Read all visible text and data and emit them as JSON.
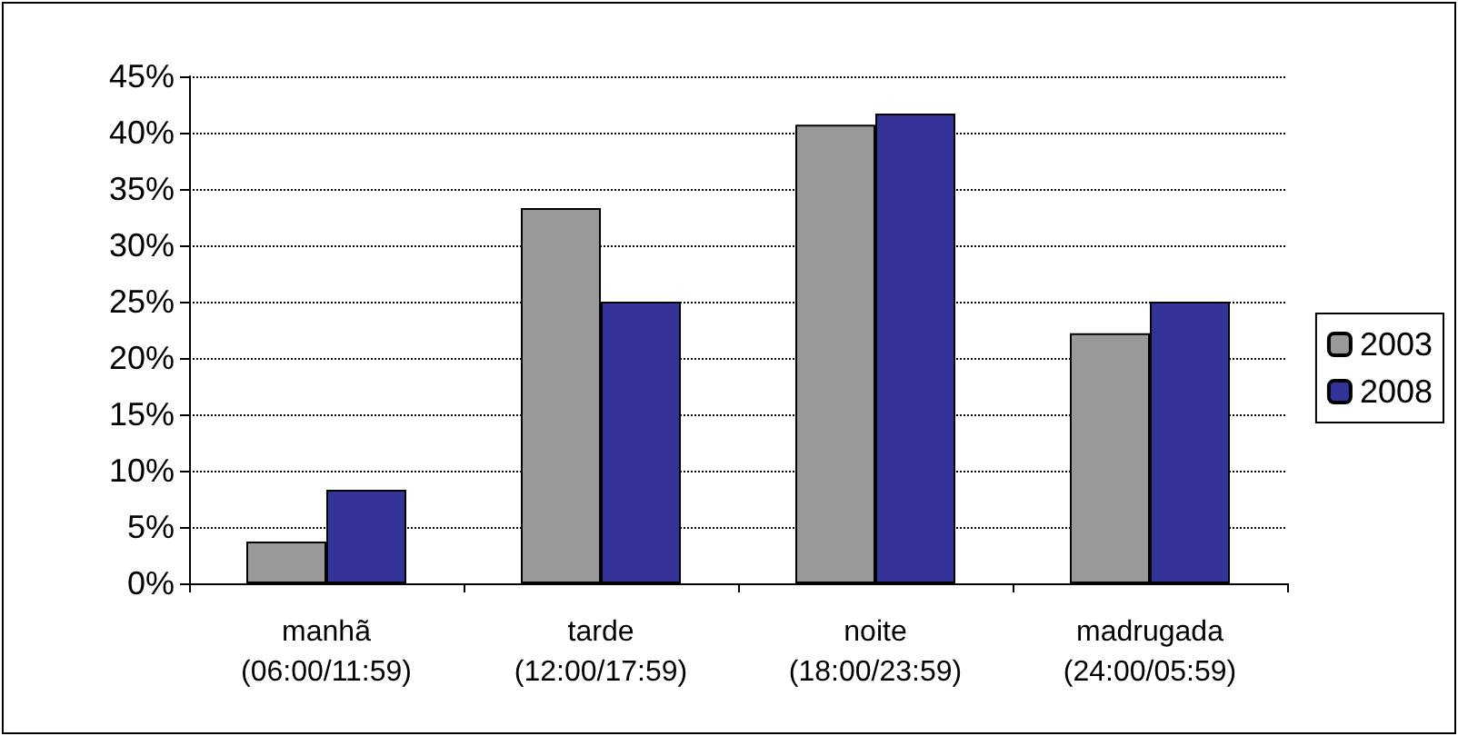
{
  "chart_data": {
    "type": "bar",
    "categories": [
      "manhã\n(06:00/11:59)",
      "tarde\n(12:00/17:59)",
      "noite\n(18:00/23:59)",
      "madrugada\n(24:00/05:59)"
    ],
    "series": [
      {
        "name": "2003",
        "color": "#999999",
        "values": [
          3.7,
          33.3,
          40.7,
          22.2
        ]
      },
      {
        "name": "2008",
        "color": "#333399",
        "values": [
          8.3,
          25,
          41.7,
          25
        ]
      }
    ],
    "ylim": [
      0,
      45
    ],
    "yticks": [
      {
        "value": 0,
        "label": "0%"
      },
      {
        "value": 5,
        "label": "5%"
      },
      {
        "value": 10,
        "label": "10%"
      },
      {
        "value": 15,
        "label": "15%"
      },
      {
        "value": 20,
        "label": "20%"
      },
      {
        "value": 25,
        "label": "25%"
      },
      {
        "value": 30,
        "label": "30%"
      },
      {
        "value": 35,
        "label": "35%"
      },
      {
        "value": 40,
        "label": "40%"
      },
      {
        "value": 45,
        "label": "45%"
      }
    ],
    "grid": "y",
    "legend": "right"
  }
}
